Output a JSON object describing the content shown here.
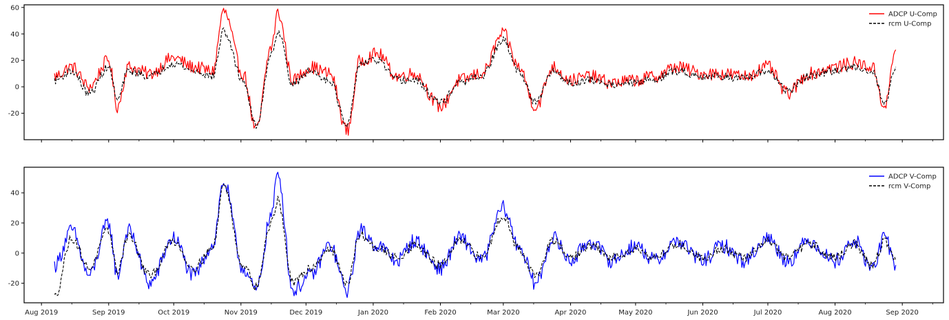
{
  "chart_data": [
    {
      "type": "line",
      "panel": "top",
      "x_ticks": [
        "Aug 2019",
        "Sep 2019",
        "Oct 2019",
        "Nov 2019",
        "Dec 2019",
        "Jan 2020",
        "Feb 2020",
        "Mar 2020",
        "Apr 2020",
        "May 2020",
        "Jun 2020",
        "Jul 2020",
        "Aug 2020",
        "Sep 2020"
      ],
      "x_tick_labels_visible": false,
      "y_ticks": [
        -20,
        0,
        20,
        40,
        60
      ],
      "ylim": [
        -40,
        62
      ],
      "xlim": [
        "2019-07-24",
        "2020-09-20"
      ],
      "x_range": [
        "2019-08-07",
        "2020-08-29"
      ],
      "legend": {
        "placement": "top-right",
        "entries": [
          {
            "label": "ADCP U-Comp",
            "color": "#ff0000",
            "style": "solid"
          },
          {
            "label": "rcm U-Comp",
            "color": "#000000",
            "style": "dashed"
          }
        ]
      },
      "series": [
        {
          "name": "ADCP U-Comp",
          "color": "#ff0000",
          "style": "solid",
          "x": [
            "2019-08-07",
            "2019-08-15",
            "2019-08-23",
            "2019-09-01",
            "2019-09-05",
            "2019-09-10",
            "2019-09-20",
            "2019-10-01",
            "2019-10-10",
            "2019-10-19",
            "2019-10-24",
            "2019-11-02",
            "2019-11-08",
            "2019-11-15",
            "2019-11-18",
            "2019-11-25",
            "2019-12-03",
            "2019-12-12",
            "2019-12-20",
            "2019-12-26",
            "2020-01-03",
            "2020-01-12",
            "2020-01-20",
            "2020-02-01",
            "2020-02-10",
            "2020-02-20",
            "2020-03-01",
            "2020-03-08",
            "2020-03-16",
            "2020-03-24",
            "2020-04-01",
            "2020-04-10",
            "2020-04-20",
            "2020-05-01",
            "2020-05-10",
            "2020-05-20",
            "2020-06-01",
            "2020-06-10",
            "2020-06-20",
            "2020-07-01",
            "2020-07-10",
            "2020-07-20",
            "2020-08-01",
            "2020-08-10",
            "2020-08-18",
            "2020-08-24",
            "2020-08-29"
          ],
          "values": [
            8,
            15,
            0,
            20,
            -15,
            15,
            10,
            22,
            15,
            12,
            57,
            10,
            -33,
            30,
            56,
            5,
            15,
            10,
            -33,
            20,
            25,
            8,
            10,
            -15,
            5,
            10,
            40,
            15,
            -15,
            15,
            5,
            8,
            3,
            5,
            8,
            15,
            10,
            10,
            8,
            15,
            -5,
            10,
            15,
            18,
            15,
            -15,
            28
          ]
        },
        {
          "name": "rcm U-Comp",
          "color": "#000000",
          "style": "dashed",
          "x": [
            "2019-08-07",
            "2019-08-15",
            "2019-08-23",
            "2019-09-01",
            "2019-09-05",
            "2019-09-10",
            "2019-09-20",
            "2019-10-01",
            "2019-10-10",
            "2019-10-19",
            "2019-10-24",
            "2019-11-02",
            "2019-11-08",
            "2019-11-15",
            "2019-11-18",
            "2019-11-25",
            "2019-12-03",
            "2019-12-12",
            "2019-12-20",
            "2019-12-26",
            "2020-01-03",
            "2020-01-12",
            "2020-01-20",
            "2020-02-01",
            "2020-02-10",
            "2020-02-20",
            "2020-03-01",
            "2020-03-08",
            "2020-03-16",
            "2020-03-24",
            "2020-04-01",
            "2020-04-10",
            "2020-04-20",
            "2020-05-01",
            "2020-05-10",
            "2020-05-20",
            "2020-06-01",
            "2020-06-10",
            "2020-06-20",
            "2020-07-01",
            "2020-07-10",
            "2020-07-20",
            "2020-08-01",
            "2020-08-10",
            "2020-08-18",
            "2020-08-24",
            "2020-08-29"
          ],
          "values": [
            5,
            12,
            -5,
            15,
            -10,
            12,
            8,
            18,
            12,
            8,
            42,
            5,
            -30,
            25,
            42,
            2,
            12,
            5,
            -30,
            18,
            20,
            5,
            5,
            -12,
            3,
            8,
            35,
            12,
            -12,
            12,
            3,
            5,
            2,
            3,
            6,
            12,
            8,
            8,
            6,
            12,
            -3,
            8,
            12,
            15,
            12,
            -12,
            15
          ]
        }
      ]
    },
    {
      "type": "line",
      "panel": "bottom",
      "x_ticks": [
        "Aug 2019",
        "Sep 2019",
        "Oct 2019",
        "Nov 2019",
        "Dec 2019",
        "Jan 2020",
        "Feb 2020",
        "Mar 2020",
        "Apr 2020",
        "May 2020",
        "Jun 2020",
        "Jul 2020",
        "Aug 2020",
        "Sep 2020"
      ],
      "x_tick_labels_visible": true,
      "y_ticks": [
        -20,
        0,
        20,
        40
      ],
      "ylim": [
        -33,
        57
      ],
      "xlim": [
        "2019-07-24",
        "2020-09-20"
      ],
      "x_range": [
        "2019-08-07",
        "2020-08-29"
      ],
      "legend": {
        "placement": "top-right",
        "entries": [
          {
            "label": "ADCP V-Comp",
            "color": "#0000ff",
            "style": "solid"
          },
          {
            "label": "rcm V-Comp",
            "color": "#000000",
            "style": "dashed"
          }
        ]
      },
      "series": [
        {
          "name": "ADCP V-Comp",
          "color": "#0000ff",
          "style": "solid",
          "x": [
            "2019-08-07",
            "2019-08-15",
            "2019-08-23",
            "2019-09-01",
            "2019-09-05",
            "2019-09-10",
            "2019-09-20",
            "2019-10-01",
            "2019-10-10",
            "2019-10-19",
            "2019-10-24",
            "2019-11-02",
            "2019-11-08",
            "2019-11-15",
            "2019-11-18",
            "2019-11-25",
            "2019-12-03",
            "2019-12-12",
            "2019-12-20",
            "2019-12-26",
            "2020-01-03",
            "2020-01-12",
            "2020-01-20",
            "2020-02-01",
            "2020-02-10",
            "2020-02-20",
            "2020-03-01",
            "2020-03-08",
            "2020-03-16",
            "2020-03-24",
            "2020-04-01",
            "2020-04-10",
            "2020-04-20",
            "2020-05-01",
            "2020-05-10",
            "2020-05-20",
            "2020-06-01",
            "2020-06-10",
            "2020-06-20",
            "2020-07-01",
            "2020-07-10",
            "2020-07-20",
            "2020-08-01",
            "2020-08-10",
            "2020-08-18",
            "2020-08-24",
            "2020-08-29"
          ],
          "values": [
            -8,
            15,
            -15,
            20,
            -15,
            15,
            -20,
            10,
            -15,
            5,
            47,
            -10,
            -25,
            25,
            53,
            -25,
            -15,
            5,
            -25,
            15,
            5,
            -5,
            8,
            -10,
            10,
            -5,
            30,
            5,
            -20,
            10,
            -5,
            8,
            -5,
            5,
            -5,
            8,
            -5,
            5,
            -5,
            10,
            -5,
            8,
            -5,
            8,
            -10,
            10,
            -8
          ]
        },
        {
          "name": "rcm V-Comp",
          "color": "#000000",
          "style": "dashed",
          "x": [
            "2019-08-07",
            "2019-08-15",
            "2019-08-23",
            "2019-09-01",
            "2019-09-05",
            "2019-09-10",
            "2019-09-20",
            "2019-10-01",
            "2019-10-10",
            "2019-10-19",
            "2019-10-24",
            "2019-11-02",
            "2019-11-08",
            "2019-11-15",
            "2019-11-18",
            "2019-11-25",
            "2019-12-03",
            "2019-12-12",
            "2019-12-20",
            "2019-12-26",
            "2020-01-03",
            "2020-01-12",
            "2020-01-20",
            "2020-02-01",
            "2020-02-10",
            "2020-02-20",
            "2020-03-01",
            "2020-03-08",
            "2020-03-16",
            "2020-03-24",
            "2020-04-01",
            "2020-04-10",
            "2020-04-20",
            "2020-05-01",
            "2020-05-10",
            "2020-05-20",
            "2020-06-01",
            "2020-06-10",
            "2020-06-20",
            "2020-07-01",
            "2020-07-10",
            "2020-07-20",
            "2020-08-01",
            "2020-08-10",
            "2020-08-18",
            "2020-08-24",
            "2020-08-29"
          ],
          "values": [
            -29,
            10,
            -10,
            15,
            -12,
            12,
            -15,
            8,
            -10,
            3,
            45,
            -8,
            -22,
            20,
            35,
            -20,
            -10,
            3,
            -20,
            12,
            3,
            -3,
            5,
            -8,
            8,
            -3,
            25,
            3,
            -15,
            8,
            -3,
            5,
            -3,
            3,
            -3,
            6,
            -3,
            3,
            -3,
            8,
            -3,
            6,
            -3,
            6,
            -8,
            8,
            -5
          ]
        }
      ]
    }
  ]
}
